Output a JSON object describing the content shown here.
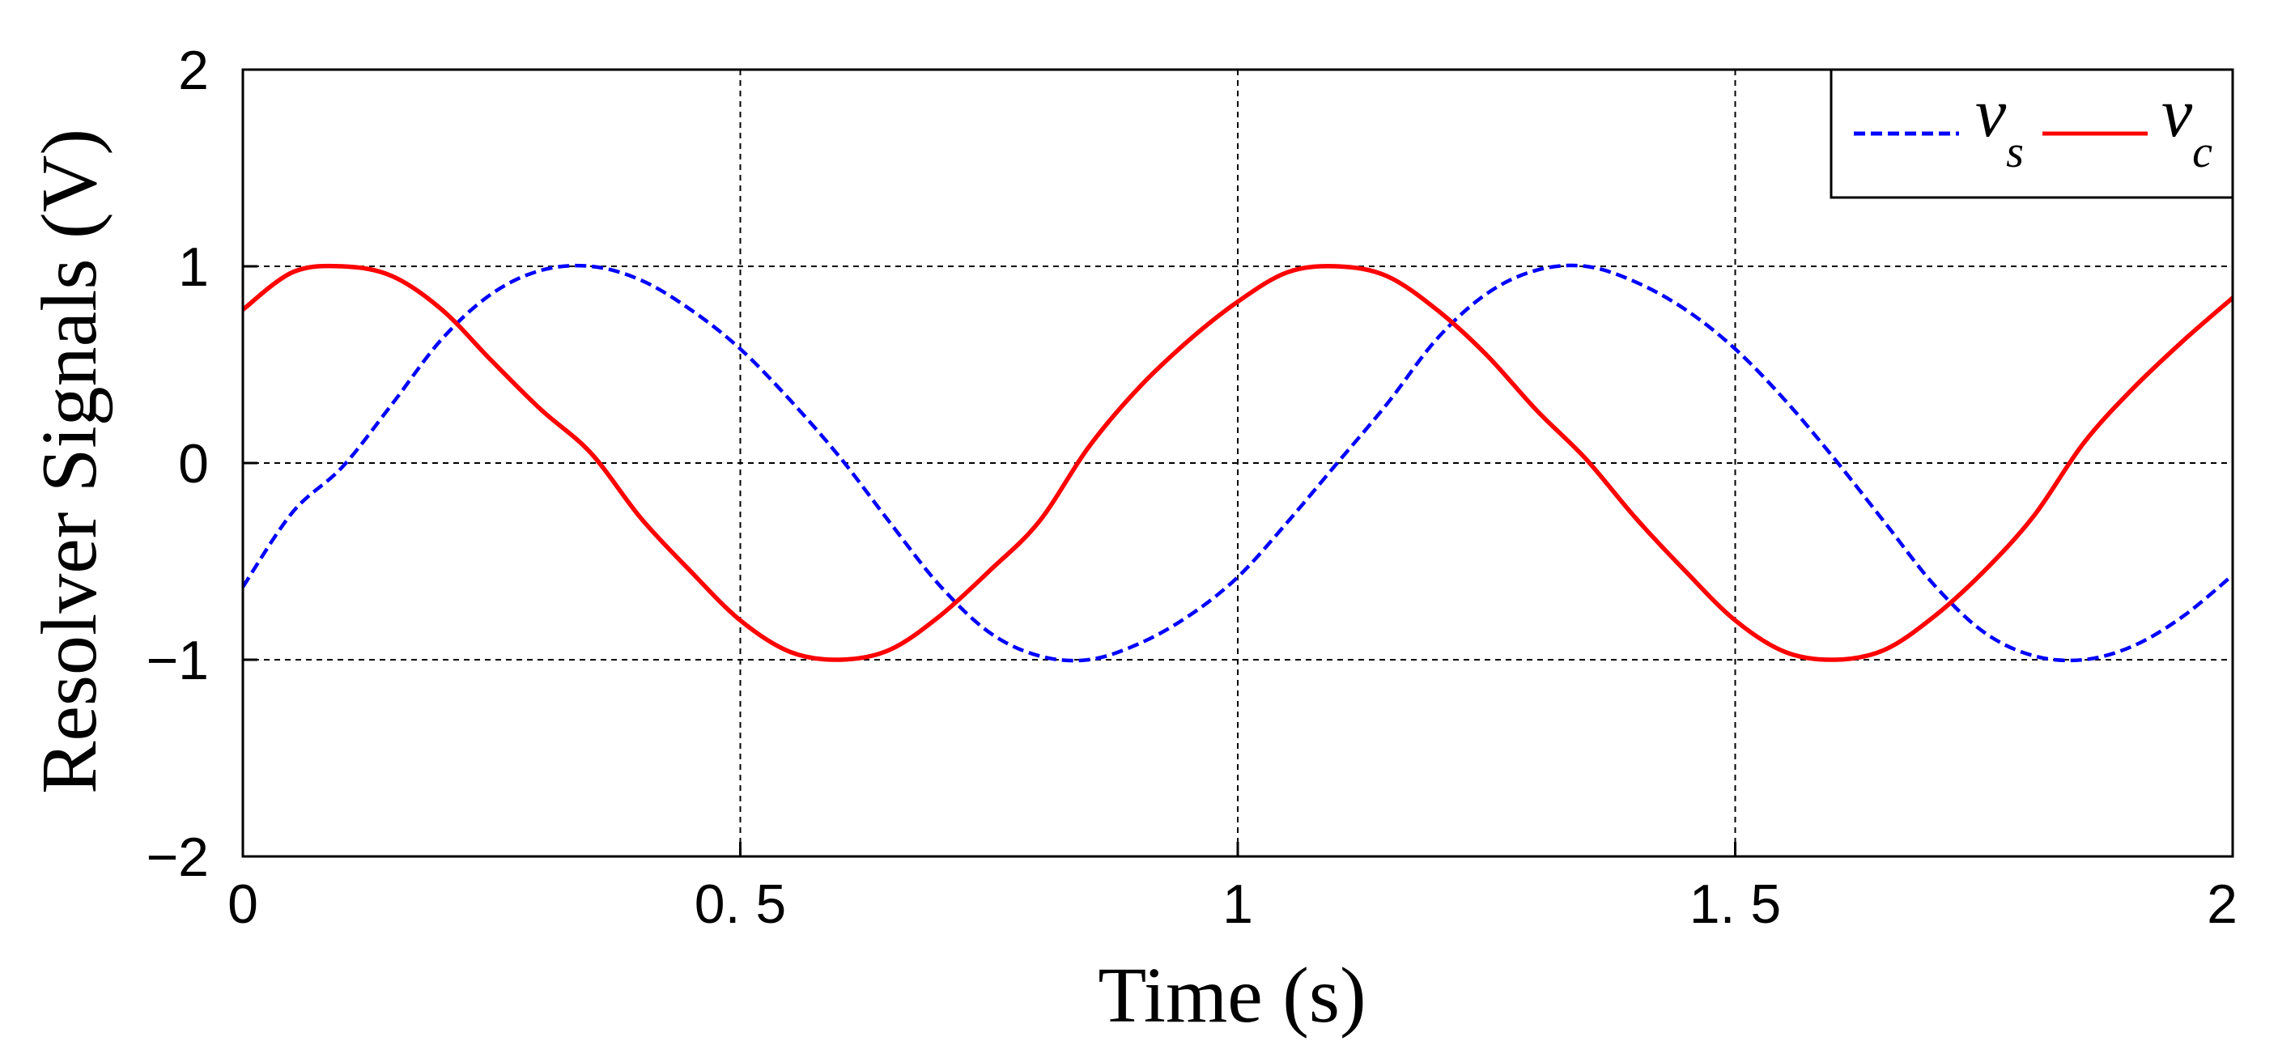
{
  "chart_data": {
    "type": "line",
    "xlabel": "Time (s)",
    "ylabel": "Resolver Signals (V)",
    "xlim": [
      0,
      2
    ],
    "ylim": [
      -2,
      2
    ],
    "x_ticks": [
      0,
      0.5,
      1,
      1.5,
      2
    ],
    "x_tick_labels": [
      "0",
      "0. 5",
      "1",
      "1. 5",
      "2"
    ],
    "y_ticks": [
      -2,
      -1,
      0,
      1,
      2
    ],
    "y_tick_labels": [
      "−2",
      "−1",
      "0",
      "1",
      "2"
    ],
    "grid": true,
    "legend_position": "top-right",
    "x": [
      0,
      0.05,
      0.1,
      0.15,
      0.2,
      0.25,
      0.3,
      0.35,
      0.4,
      0.45,
      0.5,
      0.55,
      0.6,
      0.65,
      0.7,
      0.75,
      0.8,
      0.85,
      0.9,
      0.95,
      1.0,
      1.05,
      1.1,
      1.15,
      1.2,
      1.25,
      1.3,
      1.35,
      1.4,
      1.45,
      1.5,
      1.55,
      1.6,
      1.65,
      1.7,
      1.75,
      1.8,
      1.85,
      1.9,
      1.95,
      2.0
    ],
    "series": [
      {
        "name": "v",
        "name_subscript": "s",
        "style": "dashed",
        "color": "#0000ff",
        "values": [
          -0.63,
          -0.25,
          -0.02,
          0.3,
          0.63,
          0.86,
          0.98,
          1.0,
          0.93,
          0.78,
          0.58,
          0.32,
          0.03,
          -0.3,
          -0.62,
          -0.86,
          -0.98,
          -1.0,
          -0.92,
          -0.78,
          -0.58,
          -0.3,
          0.0,
          0.3,
          0.63,
          0.86,
          0.98,
          1.0,
          0.92,
          0.78,
          0.58,
          0.32,
          0.02,
          -0.3,
          -0.62,
          -0.86,
          -0.98,
          -1.0,
          -0.93,
          -0.78,
          -0.57
        ]
      },
      {
        "name": "v",
        "name_subscript": "c",
        "style": "solid",
        "color": "#ff0000",
        "values": [
          0.78,
          0.97,
          1.0,
          0.95,
          0.78,
          0.52,
          0.27,
          0.05,
          -0.28,
          -0.55,
          -0.8,
          -0.96,
          -1.0,
          -0.95,
          -0.78,
          -0.55,
          -0.3,
          0.08,
          0.38,
          0.62,
          0.82,
          0.97,
          1.0,
          0.95,
          0.78,
          0.55,
          0.27,
          0.02,
          -0.28,
          -0.55,
          -0.8,
          -0.96,
          -1.0,
          -0.95,
          -0.78,
          -0.55,
          -0.27,
          0.1,
          0.38,
          0.62,
          0.84
        ]
      }
    ]
  }
}
